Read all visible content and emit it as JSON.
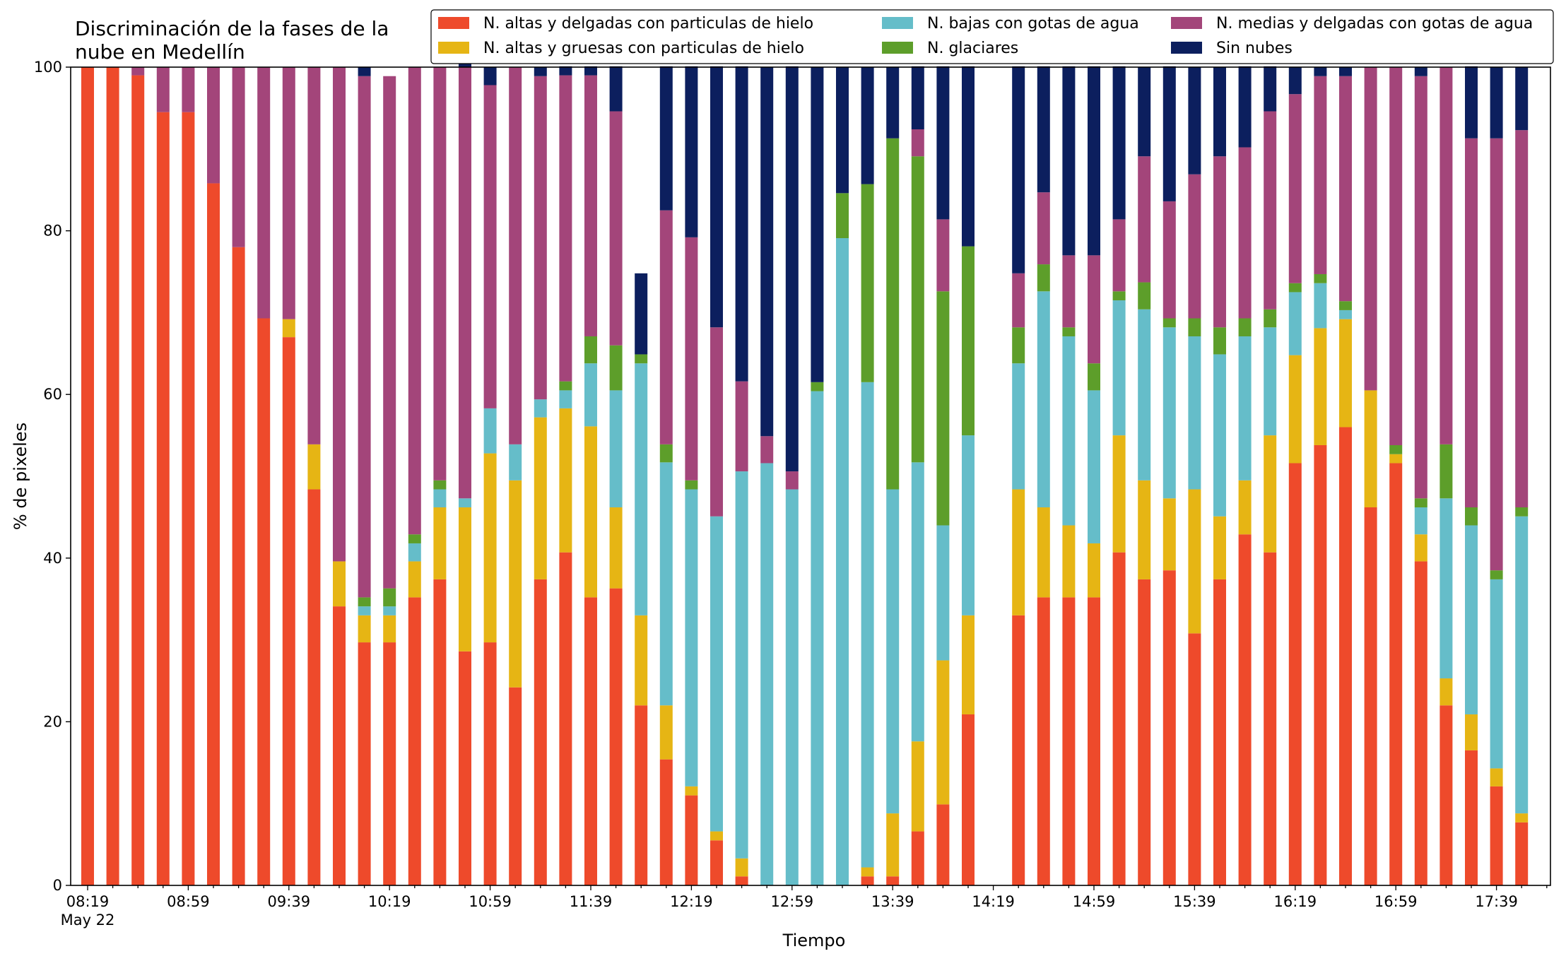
{
  "chart_data": {
    "type": "bar",
    "stacked": true,
    "title_lines": [
      "Discriminación de la fases de la",
      "nube en Medellín"
    ],
    "xlabel": "Tiempo",
    "ylabel": "% de pixeles",
    "ylim": [
      0,
      100
    ],
    "yticks": [
      0,
      20,
      40,
      60,
      80,
      100
    ],
    "grid": false,
    "legend": "top-right",
    "legend_columns": 3,
    "interval_minutes": 10,
    "xtick_labels": [
      "08:19",
      "08:59",
      "09:39",
      "10:19",
      "10:59",
      "11:39",
      "12:19",
      "12:59",
      "13:39",
      "14:19",
      "14:59",
      "15:39",
      "16:19",
      "16:59",
      "17:39"
    ],
    "xtick_sublabel": "May 22",
    "times": [
      "08:19",
      "08:29",
      "08:39",
      "08:49",
      "08:59",
      "09:09",
      "09:19",
      "09:29",
      "09:39",
      "09:49",
      "09:59",
      "10:09",
      "10:19",
      "10:29",
      "10:39",
      "10:49",
      "10:59",
      "11:09",
      "11:19",
      "11:29",
      "11:39",
      "11:49",
      "11:59",
      "12:09",
      "12:19",
      "12:29",
      "12:39",
      "12:49",
      "12:59",
      "13:09",
      "13:19",
      "13:29",
      "13:39",
      "13:49",
      "13:59",
      "14:09",
      "14:19",
      "14:29",
      "14:39",
      "14:49",
      "14:59",
      "15:09",
      "15:19",
      "15:29",
      "15:39",
      "15:49",
      "15:59",
      "16:09",
      "16:19",
      "16:29",
      "16:39",
      "16:49",
      "16:59",
      "17:09",
      "17:19",
      "17:29",
      "17:39",
      "17:49"
    ],
    "series": [
      {
        "name": "N. altas y delgadas con particulas de hielo",
        "color": "#ee4a2b",
        "values": [
          100,
          100,
          99,
          94.5,
          94.5,
          85.8,
          78,
          69.3,
          67,
          48.4,
          34.1,
          29.7,
          29.7,
          35.2,
          37.4,
          28.6,
          29.7,
          24.2,
          37.4,
          40.7,
          35.2,
          36.3,
          22,
          15.4,
          11,
          5.5,
          1.1,
          0,
          0,
          0,
          0,
          1.1,
          1.1,
          6.6,
          9.9,
          20.9,
          0,
          33,
          35.2,
          35.2,
          35.2,
          40.7,
          37.4,
          38.5,
          30.8,
          37.4,
          42.9,
          40.7,
          51.6,
          53.8,
          56,
          46.2,
          51.6,
          39.6,
          22,
          16.5,
          12.1,
          7.7
        ]
      },
      {
        "name": "N. altas y gruesas con particulas de hielo",
        "color": "#e6b514",
        "values": [
          0,
          0,
          0,
          0,
          0,
          0,
          0,
          0,
          2.2,
          5.5,
          5.5,
          3.3,
          3.3,
          4.4,
          8.8,
          17.6,
          23.1,
          25.3,
          19.8,
          17.6,
          20.9,
          9.9,
          11,
          6.6,
          1.1,
          1.1,
          2.2,
          0,
          0,
          0,
          0,
          1.1,
          7.7,
          11,
          17.6,
          12.1,
          0,
          15.4,
          11,
          8.8,
          6.6,
          14.3,
          12.1,
          8.8,
          17.6,
          7.7,
          6.6,
          14.3,
          13.2,
          14.3,
          13.2,
          14.3,
          1.1,
          3.3,
          3.3,
          4.4,
          2.2,
          1.1
        ]
      },
      {
        "name": "N. bajas con gotas de agua",
        "color": "#65bdc9",
        "values": [
          0,
          0,
          0,
          0,
          0,
          0,
          0,
          0,
          0,
          0,
          0,
          1.1,
          1.1,
          2.2,
          2.2,
          1.1,
          5.5,
          4.4,
          2.2,
          2.2,
          7.7,
          14.3,
          30.8,
          29.7,
          36.3,
          38.5,
          47.3,
          51.6,
          48.4,
          60.4,
          79.1,
          59.3,
          39.6,
          34.1,
          16.5,
          22,
          0,
          15.4,
          26.4,
          23.1,
          18.7,
          16.5,
          20.9,
          20.9,
          18.7,
          19.8,
          17.6,
          13.2,
          7.7,
          5.5,
          1.1,
          0,
          0,
          3.3,
          22,
          23.1,
          23.1,
          36.3
        ]
      },
      {
        "name": "N. glaciares",
        "color": "#5d9e2a",
        "values": [
          0,
          0,
          0,
          0,
          0,
          0,
          0,
          0,
          0,
          0,
          0,
          1.1,
          2.2,
          1.1,
          1.1,
          0,
          0,
          0,
          0,
          1.1,
          3.3,
          5.5,
          1.1,
          2.2,
          1.1,
          0,
          0,
          0,
          0,
          1.1,
          5.5,
          24.2,
          42.9,
          37.4,
          28.6,
          23.1,
          0,
          4.4,
          3.3,
          1.1,
          3.3,
          1.1,
          3.3,
          1.1,
          2.2,
          3.3,
          2.2,
          2.2,
          1.1,
          1.1,
          1.1,
          0,
          1.1,
          1.1,
          6.6,
          2.2,
          1.1,
          1.1
        ]
      },
      {
        "name": "N. medias y delgadas con gotas de agua",
        "color": "#a3457a",
        "values": [
          0,
          0,
          1,
          5.5,
          5.5,
          14.2,
          22,
          30.7,
          30.8,
          46.1,
          60.4,
          63.7,
          62.6,
          57.1,
          50.5,
          52.7,
          39.5,
          46.1,
          39.5,
          37.4,
          31.9,
          28.6,
          0,
          28.6,
          29.7,
          23.1,
          11,
          3.3,
          2.2,
          0,
          0,
          0,
          0,
          3.3,
          8.8,
          0,
          0,
          6.6,
          8.8,
          8.8,
          13.2,
          8.8,
          15.4,
          14.3,
          17.6,
          20.9,
          20.9,
          24.2,
          23.1,
          24.2,
          27.5,
          39.5,
          46.2,
          51.6,
          46.1,
          45.1,
          52.8,
          46.1
        ]
      },
      {
        "name": "Sin nubes",
        "color": "#0c1f5e",
        "values": [
          0,
          0,
          0,
          0,
          0,
          0,
          0,
          0,
          0,
          0,
          0,
          1.1,
          0,
          0,
          0,
          1.1,
          2.2,
          0,
          1.1,
          1.1,
          1.1,
          5.5,
          9.9,
          17.6,
          20.9,
          31.9,
          38.5,
          45.1,
          49.5,
          38.5,
          15.4,
          14.3,
          8.7,
          7.7,
          18.7,
          22,
          0,
          25.3,
          15.4,
          23.1,
          23.1,
          18.7,
          10.9,
          16.5,
          13.1,
          10.9,
          9.9,
          5.5,
          3.3,
          1.1,
          1.1,
          0,
          0,
          1.1,
          0,
          8.8,
          8.7,
          7.7
        ]
      }
    ]
  }
}
